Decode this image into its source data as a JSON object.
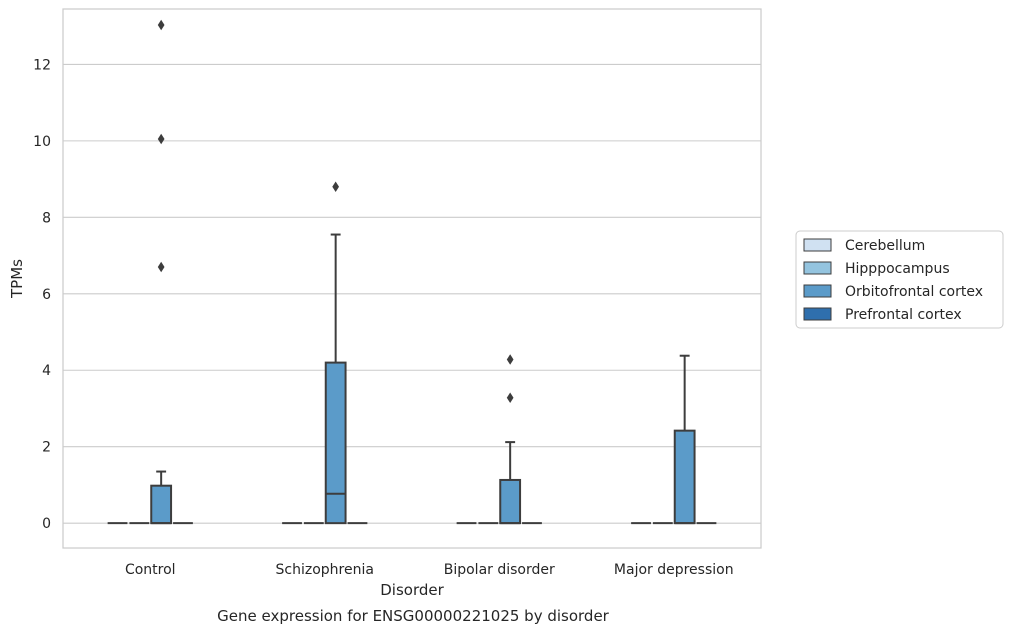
{
  "chart_data": {
    "type": "box",
    "title": "",
    "caption": "Gene expression for ENSG00000221025 by disorder",
    "xlabel": "Disorder",
    "ylabel": "TPMs",
    "ylim": [
      -0.65,
      13.45
    ],
    "yticks": [
      0,
      2,
      4,
      6,
      8,
      10,
      12
    ],
    "grid": true,
    "legend_position": "right",
    "categories": [
      "Control",
      "Schizophrenia",
      "Bipolar disorder",
      "Major depression"
    ],
    "series": [
      {
        "name": "Cerebellum",
        "color": "#d0e1f2",
        "boxes": [
          {
            "q1": 0,
            "median": 0,
            "q3": 0,
            "whisker_low": 0,
            "whisker_high": 0,
            "outliers": []
          },
          {
            "q1": 0,
            "median": 0,
            "q3": 0,
            "whisker_low": 0,
            "whisker_high": 0,
            "outliers": []
          },
          {
            "q1": 0,
            "median": 0,
            "q3": 0,
            "whisker_low": 0,
            "whisker_high": 0,
            "outliers": []
          },
          {
            "q1": 0,
            "median": 0,
            "q3": 0,
            "whisker_low": 0,
            "whisker_high": 0,
            "outliers": []
          }
        ]
      },
      {
        "name": "Hipppocampus",
        "color": "#94c4df",
        "boxes": [
          {
            "q1": 0,
            "median": 0,
            "q3": 0,
            "whisker_low": 0,
            "whisker_high": 0,
            "outliers": []
          },
          {
            "q1": 0,
            "median": 0,
            "q3": 0,
            "whisker_low": 0,
            "whisker_high": 0,
            "outliers": []
          },
          {
            "q1": 0,
            "median": 0,
            "q3": 0,
            "whisker_low": 0,
            "whisker_high": 0,
            "outliers": []
          },
          {
            "q1": 0,
            "median": 0,
            "q3": 0,
            "whisker_low": 0,
            "whisker_high": 0,
            "outliers": []
          }
        ]
      },
      {
        "name": "Orbitofrontal cortex",
        "color": "#5b9bc9",
        "boxes": [
          {
            "q1": 0,
            "median": 0,
            "q3": 0.98,
            "whisker_low": 0,
            "whisker_high": 1.35,
            "outliers": [
              6.7,
              10.05,
              13.03
            ]
          },
          {
            "q1": 0,
            "median": 0.77,
            "q3": 4.2,
            "whisker_low": 0,
            "whisker_high": 7.55,
            "outliers": [
              8.8
            ]
          },
          {
            "q1": 0,
            "median": 0,
            "q3": 1.13,
            "whisker_low": 0,
            "whisker_high": 2.12,
            "outliers": [
              3.28,
              4.28
            ]
          },
          {
            "q1": 0,
            "median": 0,
            "q3": 2.42,
            "whisker_low": 0,
            "whisker_high": 4.38,
            "outliers": []
          }
        ]
      },
      {
        "name": "Prefrontal cortex",
        "color": "#2f6fad",
        "boxes": [
          {
            "q1": 0,
            "median": 0,
            "q3": 0,
            "whisker_low": 0,
            "whisker_high": 0,
            "outliers": []
          },
          {
            "q1": 0,
            "median": 0,
            "q3": 0,
            "whisker_low": 0,
            "whisker_high": 0,
            "outliers": []
          },
          {
            "q1": 0,
            "median": 0,
            "q3": 0,
            "whisker_low": 0,
            "whisker_high": 0,
            "outliers": []
          },
          {
            "q1": 0,
            "median": 0,
            "q3": 0,
            "whisker_low": 0,
            "whisker_high": 0,
            "outliers": []
          }
        ]
      }
    ]
  }
}
